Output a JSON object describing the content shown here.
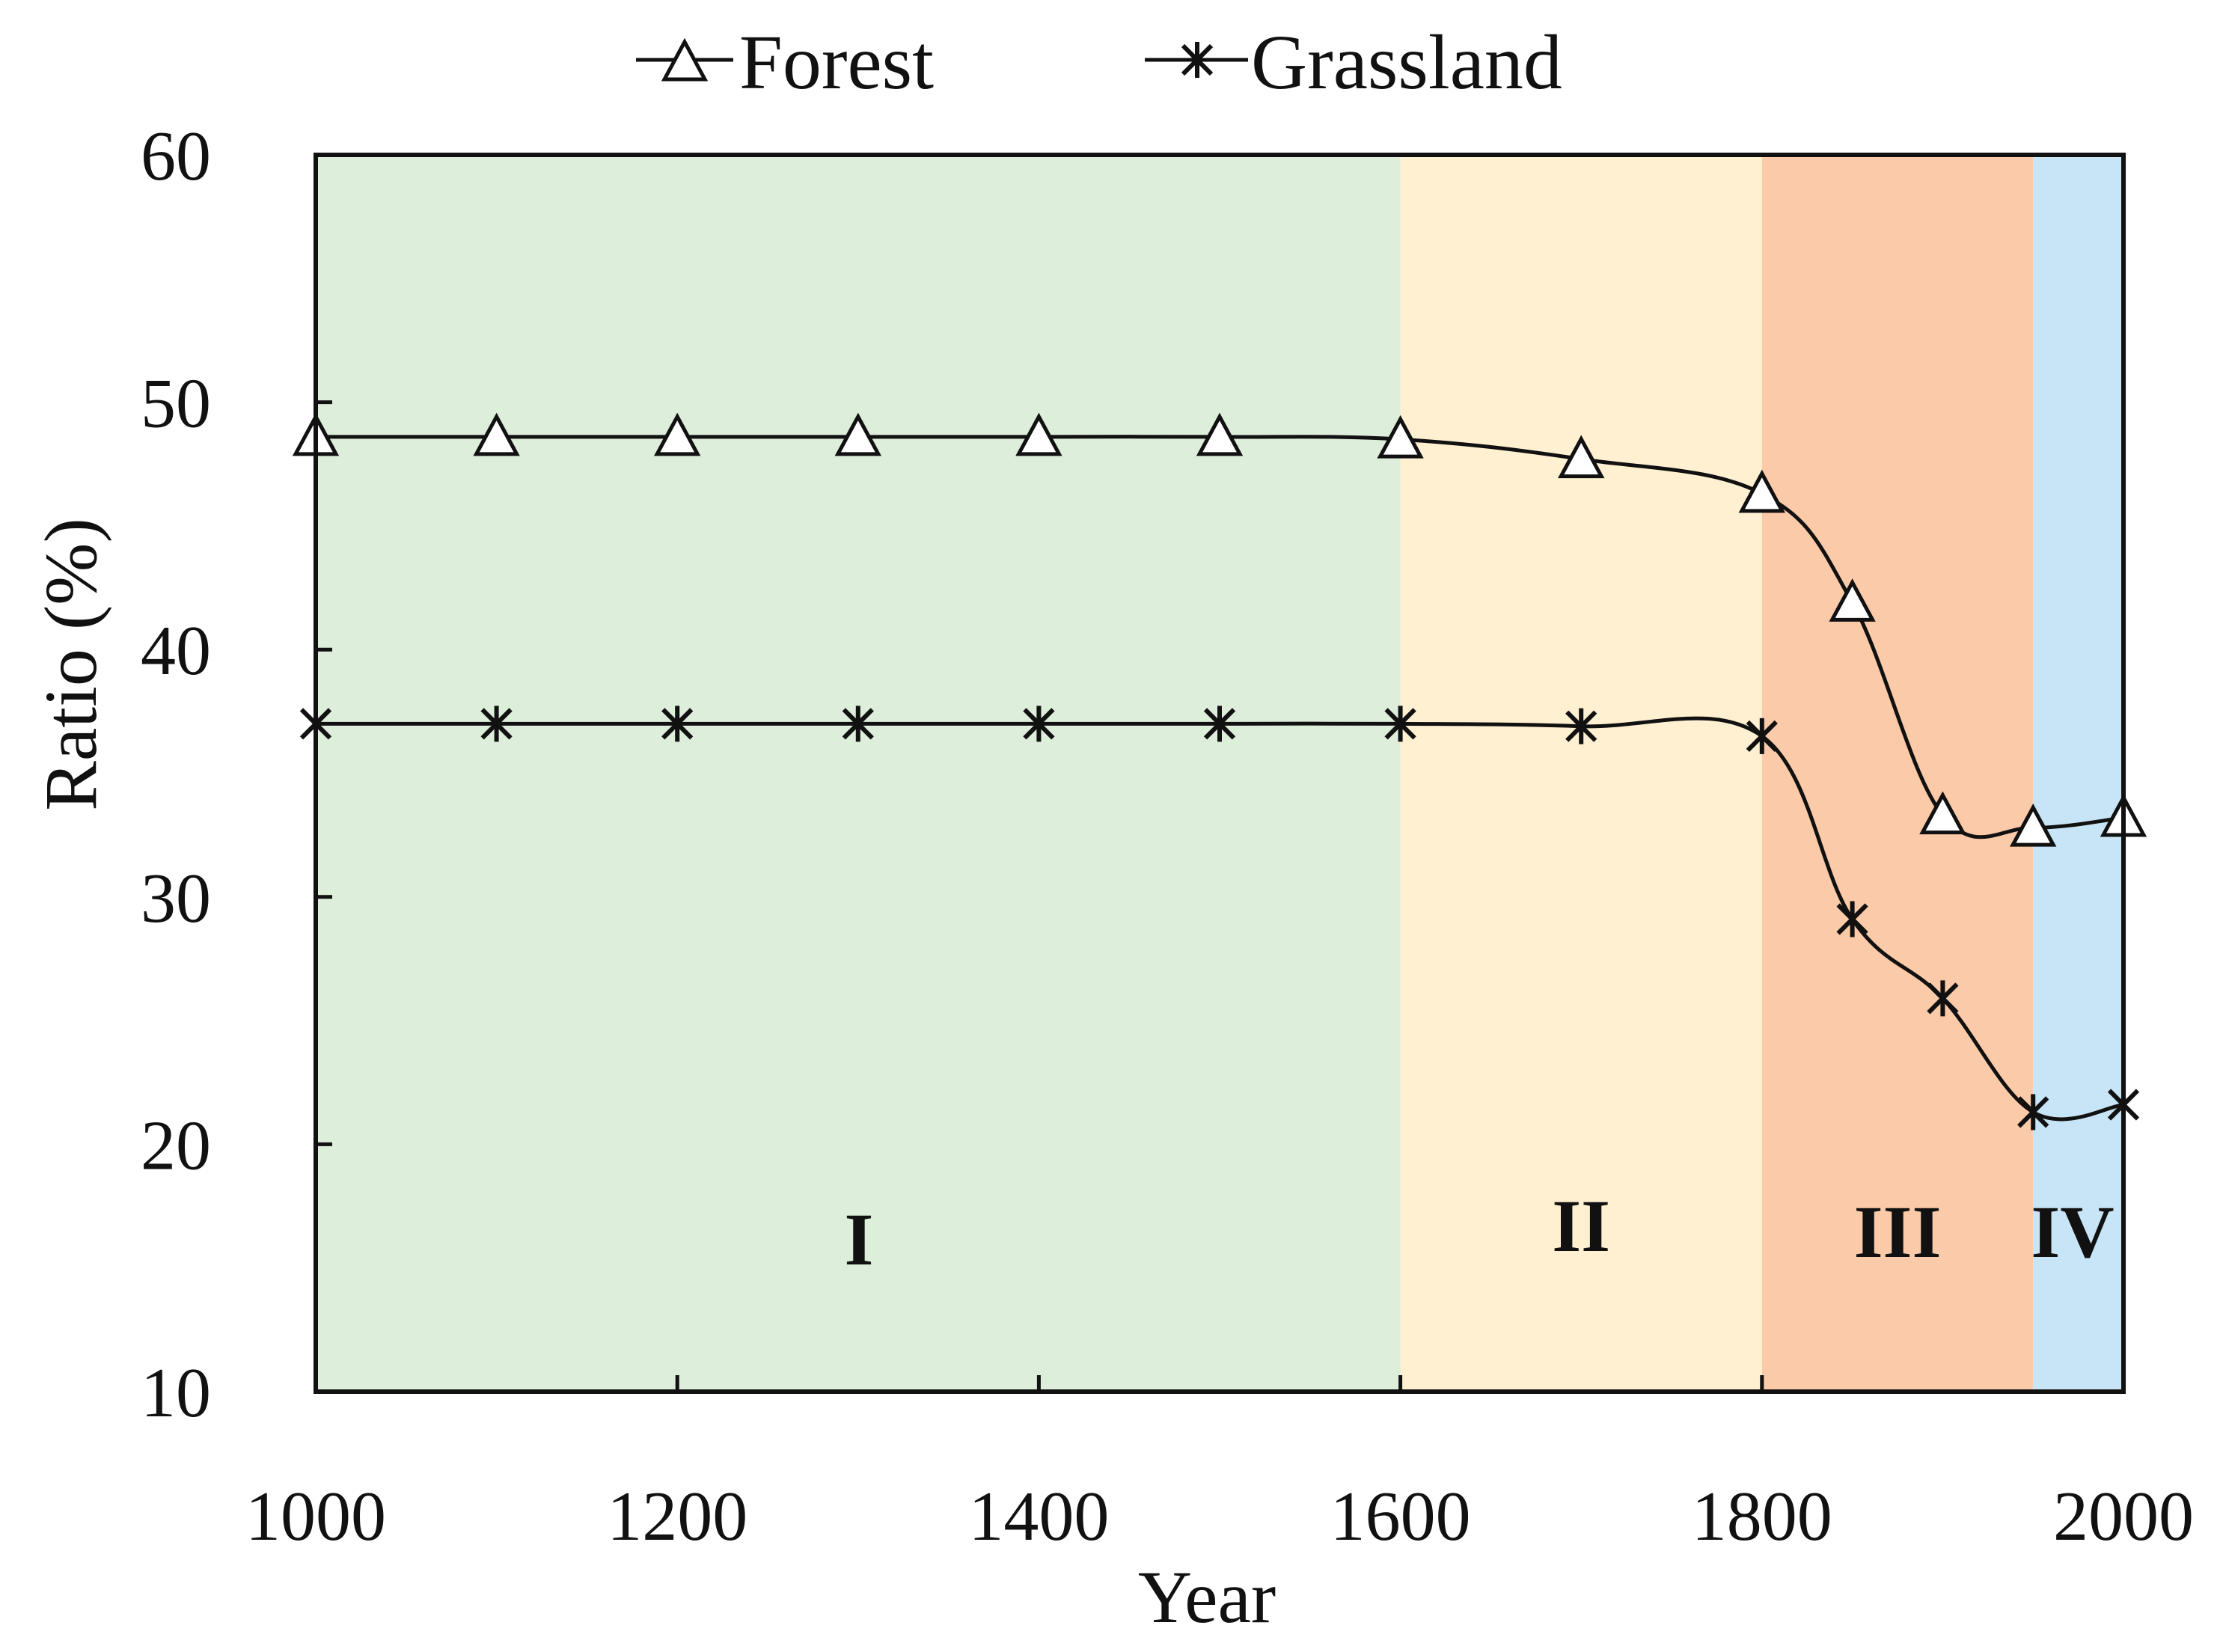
{
  "chart_data": {
    "type": "line",
    "title": "",
    "xlabel": "Year",
    "ylabel": "Ratio (%)",
    "xlim": [
      1000,
      2000
    ],
    "ylim": [
      10,
      60
    ],
    "xticks": [
      1000,
      1200,
      1400,
      1600,
      1800,
      2000
    ],
    "yticks": [
      10,
      20,
      30,
      40,
      50,
      60
    ],
    "grid": false,
    "legend_position": "top-center",
    "x": [
      1000,
      1100,
      1200,
      1300,
      1400,
      1500,
      1600,
      1700,
      1800,
      1850,
      1900,
      1950,
      2000
    ],
    "series": [
      {
        "name": "Forest",
        "marker": "triangle",
        "values": [
          48.6,
          48.6,
          48.6,
          48.6,
          48.6,
          48.6,
          48.5,
          47.7,
          46.3,
          41.9,
          33.3,
          32.8,
          33.2
        ]
      },
      {
        "name": "Grassland",
        "marker": "asterisk",
        "values": [
          37.0,
          37.0,
          37.0,
          37.0,
          37.0,
          37.0,
          37.0,
          36.9,
          36.5,
          29.1,
          25.9,
          21.3,
          21.6
        ]
      }
    ],
    "periods": [
      {
        "label": "I",
        "start": 1000,
        "end": 1600,
        "color": "#ddeeda"
      },
      {
        "label": "II",
        "start": 1600,
        "end": 1800,
        "color": "#fff0d2"
      },
      {
        "label": "III",
        "start": 1800,
        "end": 1950,
        "color": "#fbcaa9"
      },
      {
        "label": "IV",
        "start": 1950,
        "end": 2000,
        "color": "#c8e5f8"
      }
    ]
  }
}
